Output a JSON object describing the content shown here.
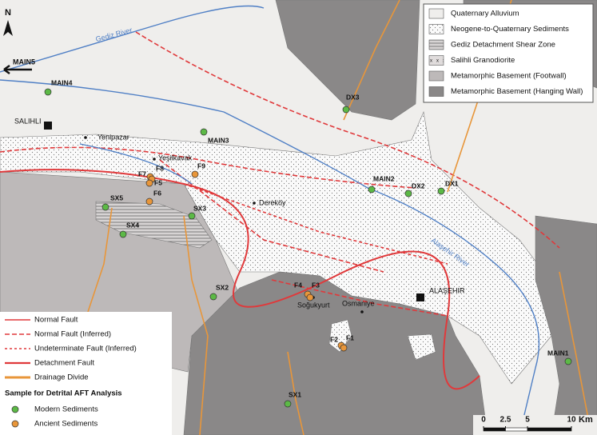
{
  "north_arrow": "N",
  "rivers": [
    "Gediz River",
    "Alaşehir River"
  ],
  "towns": [
    "SALIHLI",
    "ALAŞEHIR"
  ],
  "villages": [
    "Yenipazar",
    "Yeşilkavak",
    "Dereköy",
    "Soğukyurt",
    "Osmaniye"
  ],
  "direction_label": "MAIN5",
  "samples": [
    {
      "name": "MAIN4",
      "color": "#5cb946"
    },
    {
      "name": "MAIN3",
      "color": "#5cb946"
    },
    {
      "name": "F7",
      "color": "#e8963a"
    },
    {
      "name": "F8",
      "color": "#e8963a"
    },
    {
      "name": "F9",
      "color": "#e8963a"
    },
    {
      "name": "F5",
      "color": "#e8963a"
    },
    {
      "name": "F6",
      "color": "#e8963a"
    },
    {
      "name": "SX5",
      "color": "#5cb946"
    },
    {
      "name": "SX4",
      "color": "#5cb946"
    },
    {
      "name": "SX3",
      "color": "#5cb946"
    },
    {
      "name": "MAIN2",
      "color": "#5cb946"
    },
    {
      "name": "DX2",
      "color": "#5cb946"
    },
    {
      "name": "DX1",
      "color": "#5cb946"
    },
    {
      "name": "DX3",
      "color": "#5cb946"
    },
    {
      "name": "SX2",
      "color": "#5cb946"
    },
    {
      "name": "F4",
      "color": "#e8963a"
    },
    {
      "name": "F3",
      "color": "#e8963a"
    },
    {
      "name": "F2",
      "color": "#e8963a"
    },
    {
      "name": "F1",
      "color": "#e8963a"
    },
    {
      "name": "MAIN1",
      "color": "#5cb946"
    },
    {
      "name": "SX1",
      "color": "#5cb946"
    }
  ],
  "legend": {
    "units": [
      "Quaternary Alluvium",
      "Neogene-to-Quaternary Sediments",
      "Gediz Detachment Shear Zone",
      "Salihli Granodiorite",
      "Metamorphic Basement (Footwall)",
      "Metamorphic Basement (Hanging Wall)"
    ],
    "lines": [
      "Normal Fault",
      "Normal Fault (Inferred)",
      "Undeterminate Fault (Inferred)",
      "Detachment Fault",
      "Drainage Divide"
    ],
    "samples_title": "Sample for Detrital AFT Analysis",
    "samples": [
      "Modern Sediments",
      "Ancient Sediments"
    ]
  },
  "scale": {
    "ticks": [
      0,
      2.5,
      5,
      10
    ],
    "unit": "Km"
  }
}
